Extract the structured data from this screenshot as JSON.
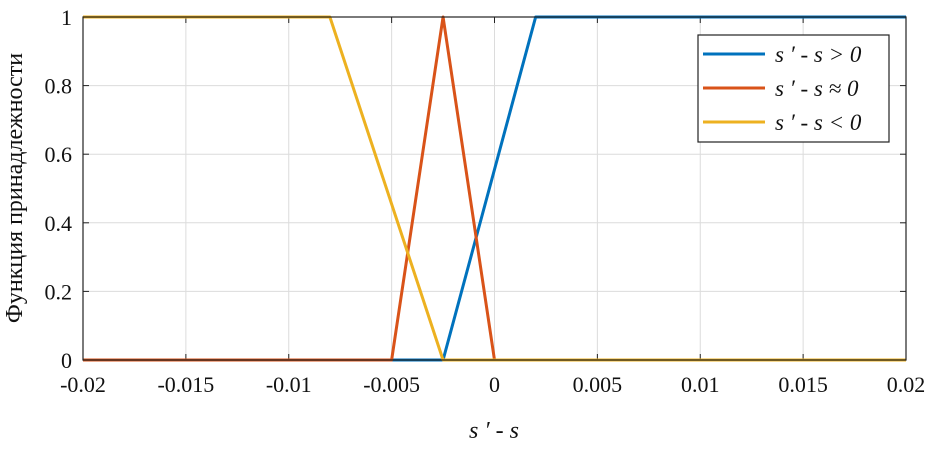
{
  "chart_data": {
    "type": "line",
    "title": "",
    "xlabel": "s ′ - s",
    "ylabel": "Функция принадлежности",
    "xlim": [
      -0.02,
      0.02
    ],
    "ylim": [
      0,
      1
    ],
    "grid": true,
    "legend_placement": "top-right",
    "xticks": [
      -0.02,
      -0.015,
      -0.01,
      -0.005,
      0,
      0.005,
      0.01,
      0.015,
      0.02
    ],
    "xtick_labels": [
      "-0.02",
      "-0.015",
      "-0.01",
      "-0.005",
      "0",
      "0.005",
      "0.01",
      "0.015",
      "0.02"
    ],
    "yticks": [
      0,
      0.2,
      0.4,
      0.6,
      0.8,
      1
    ],
    "ytick_labels": [
      "0",
      "0.2",
      "0.4",
      "0.6",
      "0.8",
      "1"
    ],
    "series": [
      {
        "name": "s ′ - s > 0",
        "color": "#0072BD",
        "x": [
          -0.02,
          -0.0025,
          0.002,
          0.02
        ],
        "y": [
          0,
          0,
          1,
          1
        ]
      },
      {
        "name": "s ′ - s ≈ 0",
        "color": "#D95319",
        "x": [
          -0.02,
          -0.005,
          -0.0025,
          0,
          0.02
        ],
        "y": [
          0,
          0,
          1,
          0,
          0
        ]
      },
      {
        "name": "s ′ - s < 0",
        "color": "#EDB120",
        "x": [
          -0.02,
          -0.008,
          -0.0025,
          0.02
        ],
        "y": [
          1,
          1,
          0,
          0
        ]
      }
    ]
  }
}
